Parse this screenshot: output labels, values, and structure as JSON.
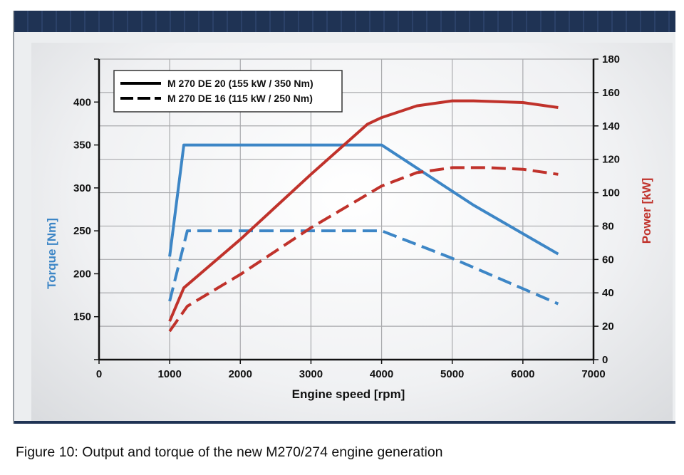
{
  "caption": "Figure 10: Output and torque of the new M270/274 engine generation",
  "colors": {
    "torque": "#3d86c6",
    "power": "#c0322b",
    "header": "#1f3354"
  },
  "chart_data": {
    "type": "line",
    "xlabel": "Engine speed [rpm]",
    "ylabel_left": "Torque [Nm]",
    "ylabel_right": "Power [kW]",
    "xlim": [
      0,
      7000
    ],
    "ylim_left": [
      100,
      450
    ],
    "ylim_right": [
      0,
      180
    ],
    "xticks": [
      0,
      1000,
      2000,
      3000,
      4000,
      5000,
      6000,
      7000
    ],
    "yticks_left": [
      150,
      200,
      250,
      300,
      350,
      400
    ],
    "yticks_right": [
      0,
      20,
      40,
      60,
      80,
      100,
      120,
      140,
      160,
      180
    ],
    "grid": true,
    "legend_position": "top-left",
    "legend": [
      {
        "label": "M 270 DE 20 (155 kW / 350 Nm)",
        "style": "solid"
      },
      {
        "label": "M 270 DE 16 (115 kW / 250 Nm)",
        "style": "dashed"
      }
    ],
    "series": [
      {
        "name": "M 270 DE 20 (155 kW / 350 Nm)",
        "quantity": "torque",
        "axis": "left",
        "style": "solid",
        "points": [
          [
            1000,
            220
          ],
          [
            1200,
            350
          ],
          [
            4000,
            350
          ],
          [
            5300,
            280
          ],
          [
            6500,
            223
          ]
        ]
      },
      {
        "name": "M 270 DE 16 (115 kW / 250 Nm)",
        "quantity": "torque",
        "axis": "left",
        "style": "dashed",
        "points": [
          [
            1000,
            168
          ],
          [
            1250,
            250
          ],
          [
            4000,
            250
          ],
          [
            5000,
            218
          ],
          [
            6500,
            165
          ]
        ]
      },
      {
        "name": "M 270 DE 20 (155 kW / 350 Nm)",
        "quantity": "power",
        "axis": "right",
        "style": "solid",
        "points": [
          [
            1000,
            23
          ],
          [
            1200,
            43
          ],
          [
            2000,
            72
          ],
          [
            3000,
            111
          ],
          [
            3800,
            141
          ],
          [
            4000,
            145
          ],
          [
            4500,
            152
          ],
          [
            5000,
            155
          ],
          [
            5300,
            155
          ],
          [
            6000,
            154
          ],
          [
            6500,
            151
          ]
        ]
      },
      {
        "name": "M 270 DE 16 (115 kW / 250 Nm)",
        "quantity": "power",
        "axis": "right",
        "style": "dashed",
        "points": [
          [
            1000,
            17
          ],
          [
            1250,
            32
          ],
          [
            2000,
            51
          ],
          [
            3000,
            79
          ],
          [
            4000,
            104
          ],
          [
            4500,
            112
          ],
          [
            5000,
            115
          ],
          [
            5500,
            115
          ],
          [
            6000,
            114
          ],
          [
            6500,
            111
          ]
        ]
      }
    ]
  }
}
